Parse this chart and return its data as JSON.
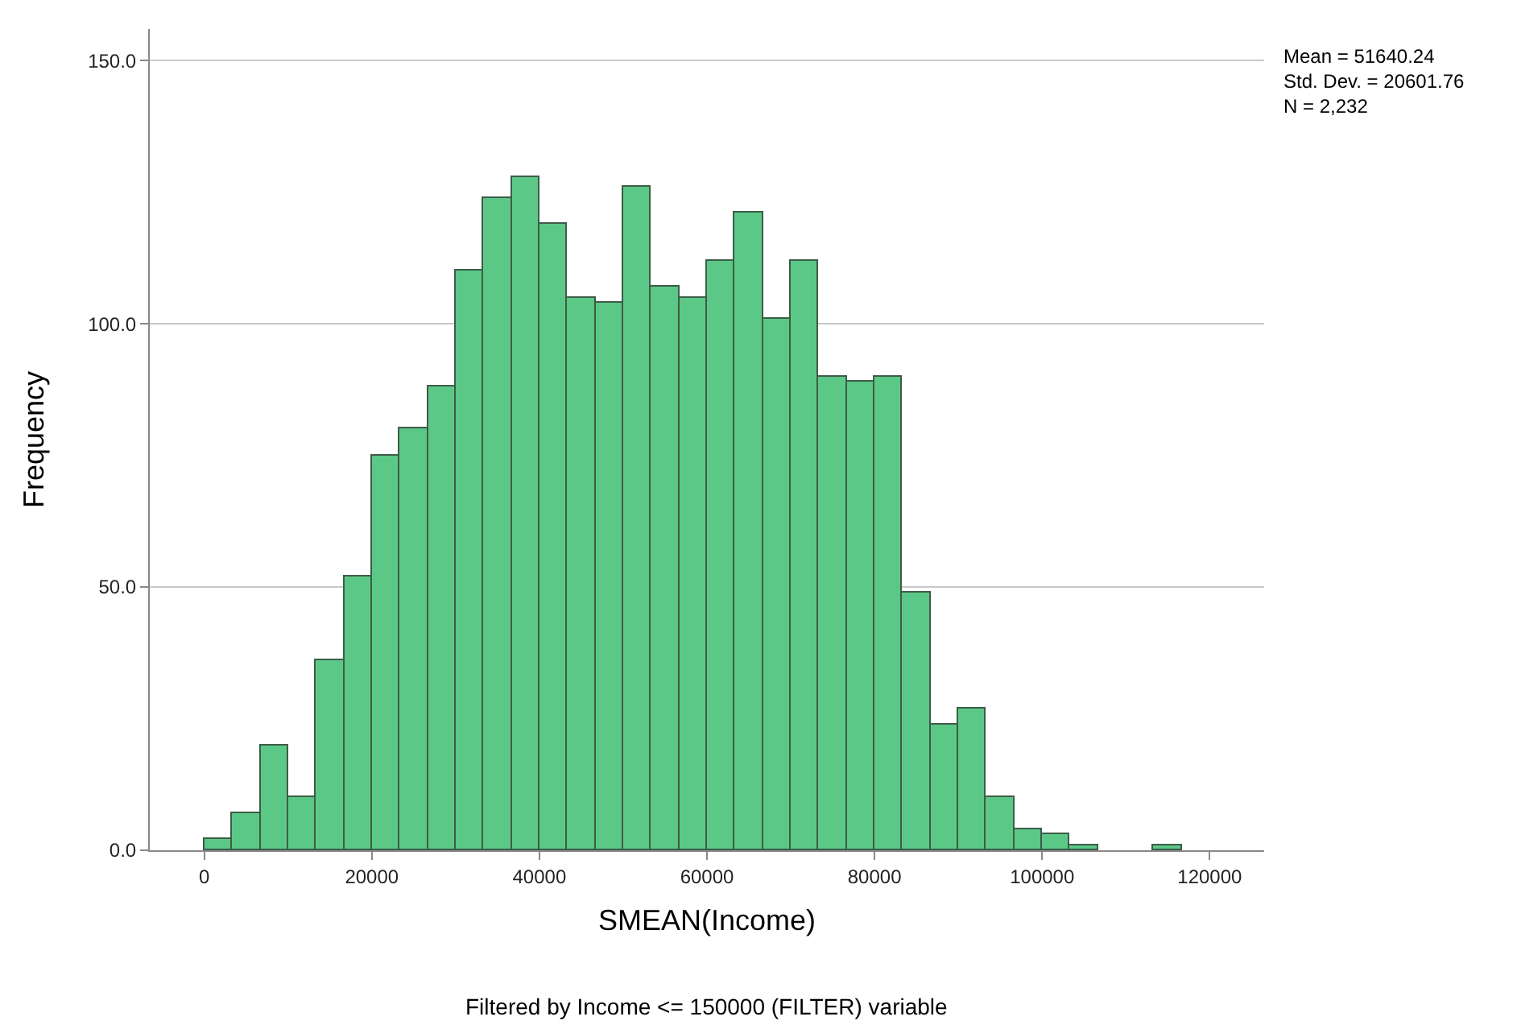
{
  "chart_data": {
    "type": "histogram",
    "xlabel": "SMEAN(Income)",
    "ylabel": "Frequency",
    "bins": [
      0,
      3333.33,
      6666.67,
      10000,
      13333.33,
      16666.67,
      20000,
      23333.33,
      26666.67,
      30000,
      33333.33,
      36666.67,
      40000,
      43333.33,
      46666.67,
      50000,
      53333.33,
      56666.67,
      60000,
      63333.33,
      66666.67,
      70000,
      73333.33,
      76666.67,
      80000,
      83333.33,
      86666.67,
      90000,
      93333.33,
      96666.67,
      100000,
      103333.33,
      106666.67,
      110000,
      113333.33,
      116666.67
    ],
    "values": [
      2,
      7,
      20,
      10,
      36,
      52,
      75,
      80,
      88,
      110,
      124,
      128,
      119,
      105,
      104,
      126,
      107,
      105,
      112,
      121,
      101,
      112,
      90,
      89,
      90,
      49,
      24,
      27,
      10,
      4,
      3,
      1,
      0,
      0,
      1
    ],
    "color": "#5cc887",
    "xlim": [
      -6500,
      126500
    ],
    "xticks": [
      0,
      20000,
      40000,
      60000,
      80000,
      100000,
      120000
    ],
    "ylim": [
      0,
      156
    ],
    "yticks": [
      {
        "value": 0,
        "label": "0.0"
      },
      {
        "value": 50,
        "label": "50.0"
      },
      {
        "value": 100,
        "label": "100.0"
      },
      {
        "value": 150,
        "label": "150.0"
      }
    ],
    "grid": "y",
    "legend": false,
    "annotations": [
      "Mean = 51640.24\nStd. Dev. = 20601.76\nN = 2,232",
      "Filtered by Income <= 150000 (FILTER) variable"
    ]
  }
}
